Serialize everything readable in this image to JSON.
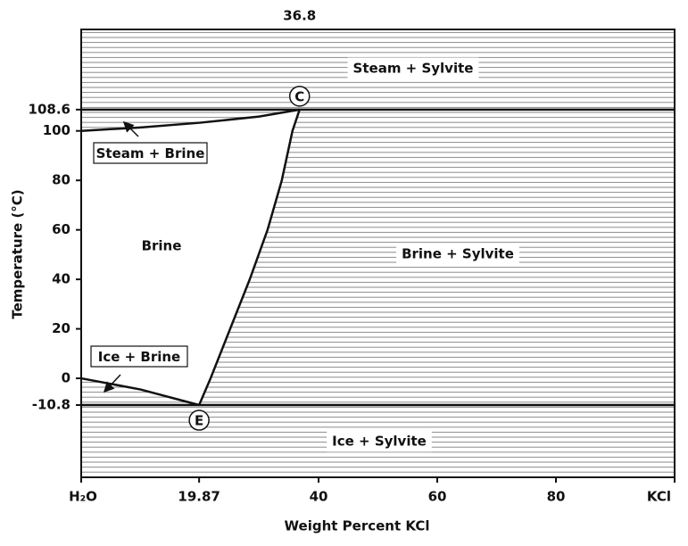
{
  "chart_data": {
    "type": "phase",
    "xlabel": "Weight Percent KCl",
    "ylabel": "Temperature (°C)",
    "xlim": [
      0,
      100
    ],
    "ylim": [
      -40,
      141
    ],
    "xticks": [
      {
        "value": 0,
        "label": "H₂O"
      },
      19.87,
      40,
      60,
      80,
      {
        "value": 100,
        "label": "KCl"
      }
    ],
    "x2ticks": [
      36.8
    ],
    "yticks": [
      108.6,
      100,
      80,
      60,
      40,
      20,
      0,
      -10.8
    ],
    "curves": [
      {
        "x": [
          0,
          10,
          20,
          30,
          36.8
        ],
        "y": [
          100,
          101.4,
          103.3,
          105.8,
          108.6
        ]
      },
      {
        "x": [
          19.87,
          21.8,
          25.1,
          28.4,
          31.4,
          33.8,
          35.6,
          36.8
        ],
        "y": [
          -10.8,
          0,
          20,
          40,
          60,
          80,
          100,
          108.6
        ]
      },
      {
        "x": [
          0,
          10,
          19.87
        ],
        "y": [
          0,
          -4.5,
          -10.8
        ]
      }
    ],
    "isotherms": [
      108.6,
      -10.8
    ],
    "points": [
      {
        "label": "C",
        "x": 36.8,
        "y": 108.6
      },
      {
        "label": "E",
        "x": 19.87,
        "y": -10.8
      }
    ],
    "regions": [
      "Steam + Sylvite",
      "Brine",
      "Brine + Sylvite",
      "Ice + Sylvite"
    ],
    "annotations": [
      "Steam + Brine",
      "Ice + Brine"
    ]
  }
}
